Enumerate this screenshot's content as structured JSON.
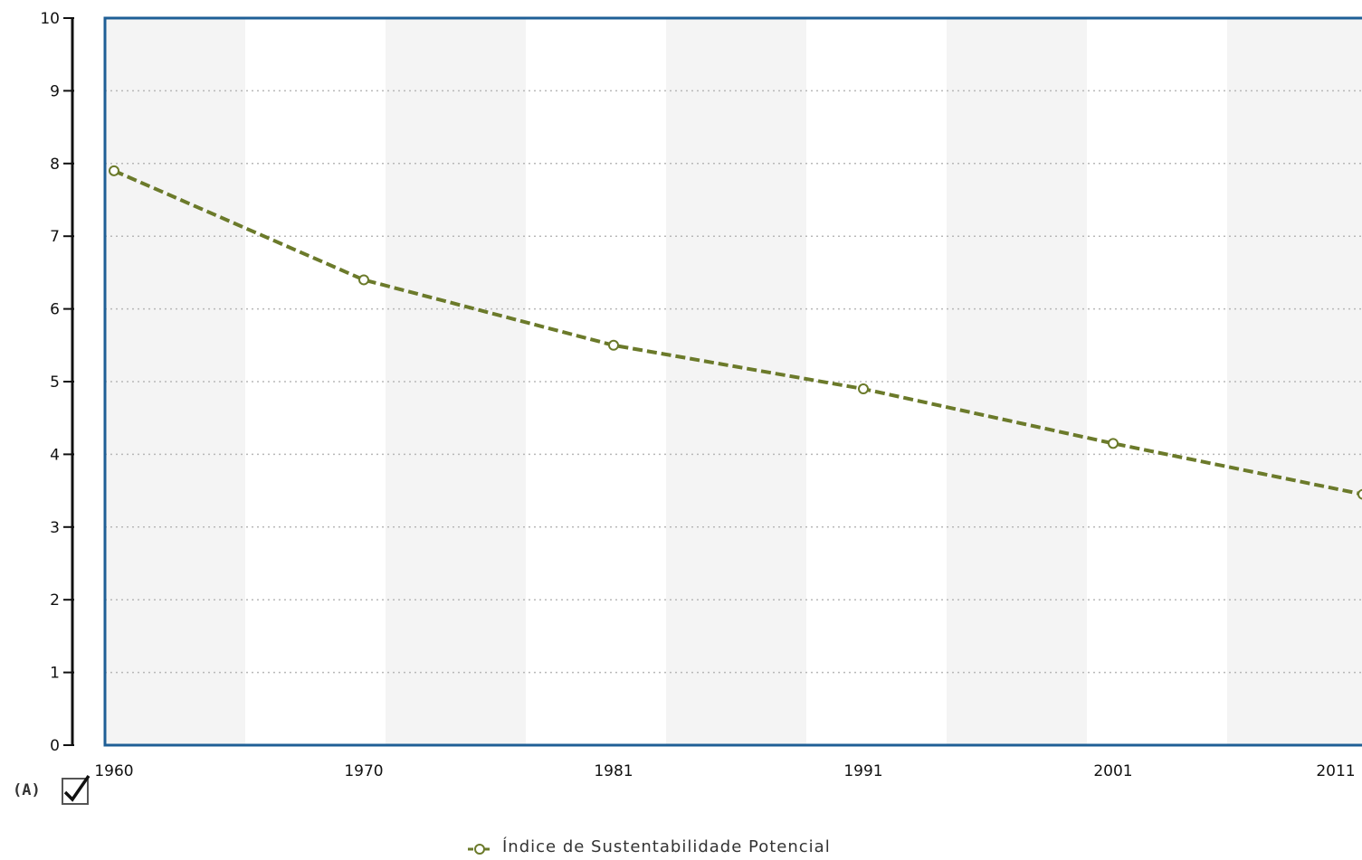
{
  "chart_data": {
    "type": "line",
    "x": [
      "1960",
      "1970",
      "1981",
      "1991",
      "2001",
      "2011"
    ],
    "series": [
      {
        "name": "Índice de Sustentabilidade Potencial",
        "values": [
          7.9,
          6.4,
          5.5,
          4.9,
          4.15,
          3.45
        ]
      }
    ],
    "y_ticks": [
      "0",
      "1",
      "2",
      "3",
      "4",
      "5",
      "6",
      "7",
      "8",
      "9",
      "10"
    ],
    "ylim": [
      0,
      10
    ],
    "grid": true,
    "legend": "bottom-center",
    "colors": {
      "line": "#6b7a2a",
      "marker_fill": "#ffffff",
      "frame": "#1f5f96",
      "band": "#f4f4f4",
      "grid": "#b8b8b8"
    }
  },
  "panel_label": "(A)",
  "checkbox": {
    "checked": true
  }
}
